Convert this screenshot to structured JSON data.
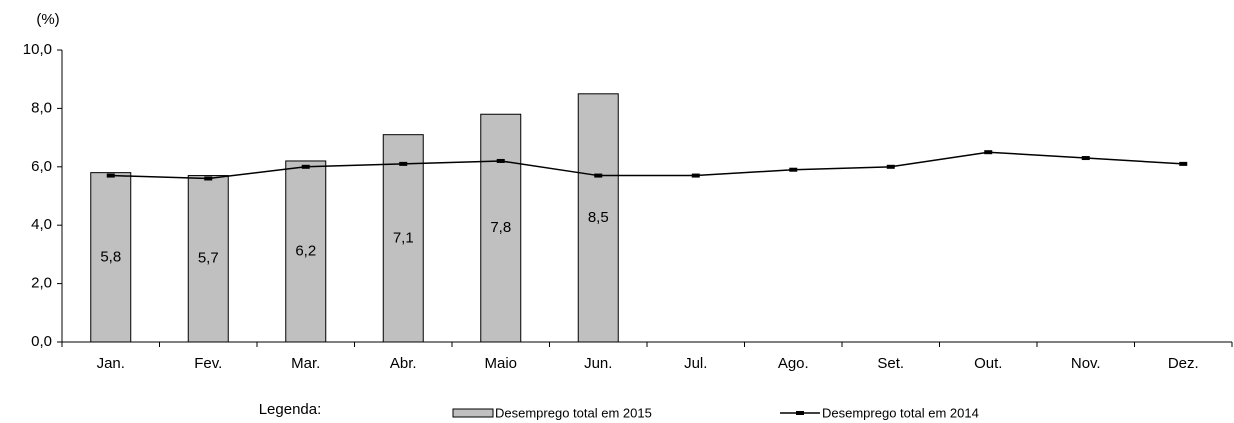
{
  "chart_data": {
    "type": "bar",
    "y_label": "(%)",
    "legend_title": "Legenda:",
    "categories": [
      "Jan.",
      "Fev.",
      "Mar.",
      "Abr.",
      "Maio",
      "Jun.",
      "Jul.",
      "Ago.",
      "Set.",
      "Out.",
      "Nov.",
      "Dez."
    ],
    "series": [
      {
        "name": "Desemprego total em 2015",
        "type": "bar",
        "color": "#c0c0c0",
        "values": [
          5.8,
          5.7,
          6.2,
          7.1,
          7.8,
          8.5,
          null,
          null,
          null,
          null,
          null,
          null
        ],
        "value_labels": [
          "5,8",
          "5,7",
          "6,2",
          "7,1",
          "7,8",
          "8,5",
          null,
          null,
          null,
          null,
          null,
          null
        ]
      },
      {
        "name": "Desemprego total em 2014",
        "type": "line",
        "color": "#000000",
        "values": [
          5.7,
          5.6,
          6.0,
          6.1,
          6.2,
          5.7,
          5.7,
          5.9,
          6.0,
          6.5,
          6.3,
          6.1
        ]
      }
    ],
    "ylim": [
      0,
      10
    ],
    "yticks": [
      {
        "value": 0,
        "label": "0,0"
      },
      {
        "value": 2,
        "label": "2,0"
      },
      {
        "value": 4,
        "label": "4,0"
      },
      {
        "value": 6,
        "label": "6,0"
      },
      {
        "value": 8,
        "label": "8,0"
      },
      {
        "value": 10,
        "label": "10,0"
      }
    ]
  }
}
